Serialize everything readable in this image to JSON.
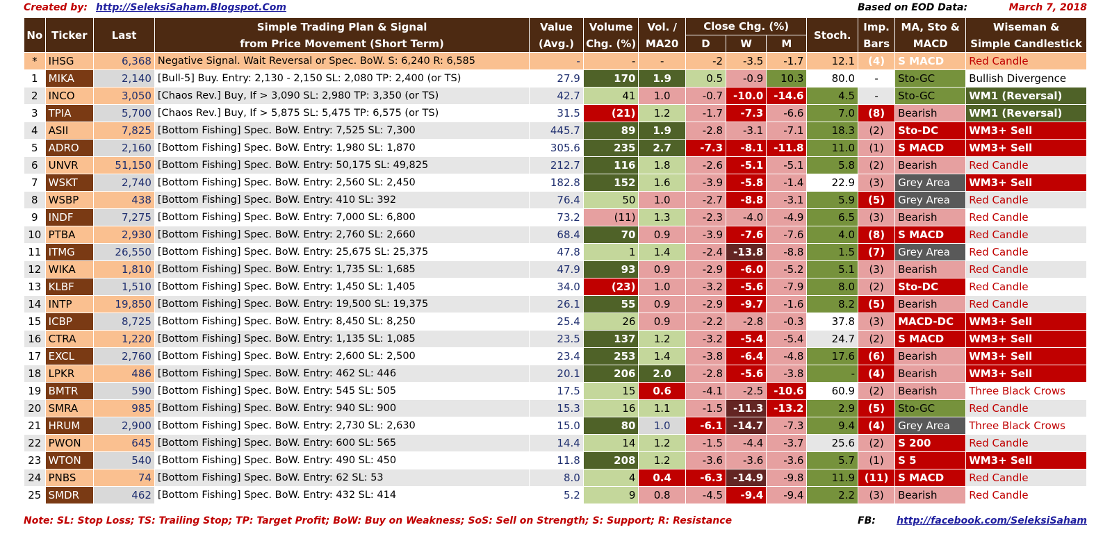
{
  "header": {
    "created_label": "Created by:",
    "created_link": "http://SeleksiSaham.Blogspot.Com",
    "eod_label": "Based on EOD Data:",
    "date": "March 7, 2018"
  },
  "columns": {
    "no": "No",
    "ticker": "Ticker",
    "last": "Last",
    "plan_line1": "Simple Trading Plan & Signal",
    "plan_line2": "from Price Movement (Short Term)",
    "value_line1": "Value",
    "value_line2": "(Avg.)",
    "volume_line1": "Volume",
    "volume_line2": "Chg. (%)",
    "vol_line1": "Vol. /",
    "vol_line2": "MA20",
    "close_chg": "Close Chg. (%)",
    "d": "D",
    "w": "W",
    "m": "M",
    "stoch": "Stoch.",
    "imp_line1": "Imp.",
    "imp_line2": "Bars",
    "ma_line1": "MA, Sto &",
    "ma_line2": "MACD",
    "wiseman_line1": "Wiseman  &",
    "wiseman_line2": "Simple Candlestick"
  },
  "rows": [
    {
      "no": "*",
      "ticker": "IHSG",
      "last": "6,368",
      "plan": "Negative Signal.  Wait Reversal or Spec. BoW.  S:  6,240  R:  6,585",
      "value": "-",
      "vol_chg": "-",
      "vol_ma20": "-",
      "d": "-2",
      "w": "-3.5",
      "m": "-1.7",
      "stoch": "12.1",
      "imp": "(4)",
      "ma": "S MACD",
      "ws": "Red Candle"
    },
    {
      "no": "1",
      "ticker": "MIKA",
      "last": "2,140",
      "plan": "[Bull-5] Buy.  Entry:  2,130 -  2,150  SL: 2,080  TP:  2,400  (or TS)",
      "value": "27.9",
      "vol_chg": "170",
      "vol_ma20": "1.9",
      "d": "0.5",
      "w": "-0.9",
      "m": "10.3",
      "stoch": "80.0",
      "imp": "-",
      "ma": "Sto-GC",
      "ws": "Bullish Divergence"
    },
    {
      "no": "2",
      "ticker": "INCO",
      "last": "3,050",
      "plan": "[Chaos Rev.] Buy, If >  3,090  SL: 2,980  TP: 3,350  (or TS)",
      "value": "42.7",
      "vol_chg": "41",
      "vol_ma20": "1.0",
      "d": "-0.7",
      "w": "-10.0",
      "m": "-14.6",
      "stoch": "4.5",
      "imp": "-",
      "ma": "Sto-GC",
      "ws": "WM1 (Reversal)"
    },
    {
      "no": "3",
      "ticker": "TPIA",
      "last": "5,700",
      "plan": "[Chaos Rev.] Buy, If >  5,875  SL: 5,475  TP: 6,575  (or TS)",
      "value": "31.5",
      "vol_chg": "(21)",
      "vol_ma20": "1.2",
      "d": "-1.7",
      "w": "-7.3",
      "m": "-6.6",
      "stoch": "7.0",
      "imp": "(8)",
      "ma": "Bearish",
      "ws": "WM1 (Reversal)"
    },
    {
      "no": "4",
      "ticker": "ASII",
      "last": "7,825",
      "plan": "[Bottom Fishing]  Spec. BoW. Entry:  7,525  SL:  7,300",
      "value": "445.7",
      "vol_chg": "89",
      "vol_ma20": "1.9",
      "d": "-2.8",
      "w": "-3.1",
      "m": "-7.1",
      "stoch": "18.3",
      "imp": "(2)",
      "ma": "Sto-DC",
      "ws": "WM3+ Sell"
    },
    {
      "no": "5",
      "ticker": "ADRO",
      "last": "2,160",
      "plan": "[Bottom Fishing]  Spec. BoW. Entry:  1,980  SL:  1,870",
      "value": "305.6",
      "vol_chg": "235",
      "vol_ma20": "2.7",
      "d": "-7.3",
      "w": "-8.1",
      "m": "-11.8",
      "stoch": "11.0",
      "imp": "(1)",
      "ma": "S MACD",
      "ws": "WM3+ Sell"
    },
    {
      "no": "6",
      "ticker": "UNVR",
      "last": "51,150",
      "plan": "[Bottom Fishing]  Spec. BoW. Entry: 50,175  SL: 49,825",
      "value": "212.7",
      "vol_chg": "116",
      "vol_ma20": "1.8",
      "d": "-2.6",
      "w": "-5.1",
      "m": "-5.1",
      "stoch": "5.8",
      "imp": "(2)",
      "ma": "Bearish",
      "ws": "Red Candle"
    },
    {
      "no": "7",
      "ticker": "WSKT",
      "last": "2,740",
      "plan": "[Bottom Fishing]  Spec. BoW. Entry:  2,560  SL:  2,450",
      "value": "182.8",
      "vol_chg": "152",
      "vol_ma20": "1.6",
      "d": "-3.9",
      "w": "-5.8",
      "m": "-1.4",
      "stoch": "22.9",
      "imp": "(3)",
      "ma": "Grey Area",
      "ws": "WM3+ Sell"
    },
    {
      "no": "8",
      "ticker": "WSBP",
      "last": "438",
      "plan": "[Bottom Fishing]  Spec. BoW. Entry:    410  SL:    392",
      "value": "76.4",
      "vol_chg": "50",
      "vol_ma20": "1.0",
      "d": "-2.7",
      "w": "-8.8",
      "m": "-3.1",
      "stoch": "5.9",
      "imp": "(5)",
      "ma": "Grey Area",
      "ws": "Red Candle"
    },
    {
      "no": "9",
      "ticker": "INDF",
      "last": "7,275",
      "plan": "[Bottom Fishing]  Spec. BoW. Entry:  7,000  SL:  6,800",
      "value": "73.2",
      "vol_chg": "(11)",
      "vol_ma20": "1.3",
      "d": "-2.3",
      "w": "-4.0",
      "m": "-4.9",
      "stoch": "6.5",
      "imp": "(3)",
      "ma": "Bearish",
      "ws": "Red Candle"
    },
    {
      "no": "10",
      "ticker": "PTBA",
      "last": "2,930",
      "plan": "[Bottom Fishing]  Spec. BoW. Entry:  2,760  SL:  2,660",
      "value": "68.4",
      "vol_chg": "70",
      "vol_ma20": "0.9",
      "d": "-3.9",
      "w": "-7.6",
      "m": "-7.6",
      "stoch": "4.0",
      "imp": "(8)",
      "ma": "S MACD",
      "ws": "Red Candle"
    },
    {
      "no": "11",
      "ticker": "ITMG",
      "last": "26,550",
      "plan": "[Bottom Fishing]  Spec. BoW. Entry: 25,675  SL: 25,375",
      "value": "47.8",
      "vol_chg": "1",
      "vol_ma20": "1.4",
      "d": "-2.4",
      "w": "-13.8",
      "m": "-8.8",
      "stoch": "1.5",
      "imp": "(7)",
      "ma": "Grey Area",
      "ws": "Red Candle"
    },
    {
      "no": "12",
      "ticker": "WIKA",
      "last": "1,810",
      "plan": "[Bottom Fishing]  Spec. BoW. Entry:  1,735  SL:  1,685",
      "value": "47.9",
      "vol_chg": "93",
      "vol_ma20": "0.9",
      "d": "-2.9",
      "w": "-6.0",
      "m": "-5.2",
      "stoch": "5.1",
      "imp": "(3)",
      "ma": "Bearish",
      "ws": "Red Candle"
    },
    {
      "no": "13",
      "ticker": "KLBF",
      "last": "1,510",
      "plan": "[Bottom Fishing]  Spec. BoW. Entry:  1,450  SL:  1,405",
      "value": "34.0",
      "vol_chg": "(23)",
      "vol_ma20": "1.0",
      "d": "-3.2",
      "w": "-5.6",
      "m": "-7.9",
      "stoch": "8.0",
      "imp": "(2)",
      "ma": "Sto-DC",
      "ws": "Red Candle"
    },
    {
      "no": "14",
      "ticker": "INTP",
      "last": "19,850",
      "plan": "[Bottom Fishing]  Spec. BoW. Entry: 19,500  SL: 19,375",
      "value": "26.1",
      "vol_chg": "55",
      "vol_ma20": "0.9",
      "d": "-2.9",
      "w": "-9.7",
      "m": "-1.6",
      "stoch": "8.2",
      "imp": "(5)",
      "ma": "Bearish",
      "ws": "Red Candle"
    },
    {
      "no": "15",
      "ticker": "ICBP",
      "last": "8,725",
      "plan": "[Bottom Fishing]  Spec. BoW. Entry:  8,450  SL:  8,250",
      "value": "25.4",
      "vol_chg": "26",
      "vol_ma20": "0.9",
      "d": "-2.2",
      "w": "-2.8",
      "m": "-0.3",
      "stoch": "37.8",
      "imp": "(3)",
      "ma": "MACD-DC",
      "ws": "WM3+ Sell"
    },
    {
      "no": "16",
      "ticker": "CTRA",
      "last": "1,220",
      "plan": "[Bottom Fishing]  Spec. BoW. Entry:  1,135  SL:  1,085",
      "value": "23.5",
      "vol_chg": "137",
      "vol_ma20": "1.2",
      "d": "-3.2",
      "w": "-5.4",
      "m": "-5.4",
      "stoch": "24.7",
      "imp": "(2)",
      "ma": "S MACD",
      "ws": "WM3+ Sell"
    },
    {
      "no": "17",
      "ticker": "EXCL",
      "last": "2,760",
      "plan": "[Bottom Fishing]  Spec. BoW. Entry:  2,600  SL:  2,500",
      "value": "23.4",
      "vol_chg": "253",
      "vol_ma20": "1.4",
      "d": "-3.8",
      "w": "-6.4",
      "m": "-4.8",
      "stoch": "17.6",
      "imp": "(6)",
      "ma": "Bearish",
      "ws": "WM3+ Sell"
    },
    {
      "no": "18",
      "ticker": "LPKR",
      "last": "486",
      "plan": "[Bottom Fishing]  Spec. BoW. Entry:    462  SL:    446",
      "value": "20.1",
      "vol_chg": "206",
      "vol_ma20": "2.0",
      "d": "-2.8",
      "w": "-5.6",
      "m": "-3.8",
      "stoch": "-",
      "imp": "(4)",
      "ma": "Bearish",
      "ws": "WM3+ Sell"
    },
    {
      "no": "19",
      "ticker": "BMTR",
      "last": "590",
      "plan": "[Bottom Fishing]  Spec. BoW. Entry:    545  SL:    505",
      "value": "17.5",
      "vol_chg": "15",
      "vol_ma20": "0.6",
      "d": "-4.1",
      "w": "-2.5",
      "m": "-10.6",
      "stoch": "60.9",
      "imp": "(2)",
      "ma": "Bearish",
      "ws": "Three Black Crows"
    },
    {
      "no": "20",
      "ticker": "SMRA",
      "last": "985",
      "plan": "[Bottom Fishing]  Spec. BoW. Entry:    940  SL:    900",
      "value": "15.3",
      "vol_chg": "16",
      "vol_ma20": "1.1",
      "d": "-1.5",
      "w": "-11.3",
      "m": "-13.2",
      "stoch": "2.9",
      "imp": "(5)",
      "ma": "Sto-GC",
      "ws": "Red Candle"
    },
    {
      "no": "21",
      "ticker": "HRUM",
      "last": "2,900",
      "plan": "[Bottom Fishing]  Spec. BoW. Entry:  2,730  SL:  2,630",
      "value": "15.0",
      "vol_chg": "80",
      "vol_ma20": "1.0",
      "d": "-6.1",
      "w": "-14.7",
      "m": "-7.3",
      "stoch": "9.4",
      "imp": "(4)",
      "ma": "Grey Area",
      "ws": "Three Black Crows"
    },
    {
      "no": "22",
      "ticker": "PWON",
      "last": "645",
      "plan": "[Bottom Fishing]  Spec. BoW. Entry:    600  SL:    565",
      "value": "14.4",
      "vol_chg": "14",
      "vol_ma20": "1.2",
      "d": "-1.5",
      "w": "-4.4",
      "m": "-3.7",
      "stoch": "25.6",
      "imp": "(2)",
      "ma": "S 200",
      "ws": "Red Candle"
    },
    {
      "no": "23",
      "ticker": "WTON",
      "last": "540",
      "plan": "[Bottom Fishing]  Spec. BoW. Entry:    490  SL:    450",
      "value": "11.8",
      "vol_chg": "208",
      "vol_ma20": "1.2",
      "d": "-3.6",
      "w": "-3.6",
      "m": "-3.6",
      "stoch": "5.7",
      "imp": "(1)",
      "ma": "S 5",
      "ws": "WM3+ Sell"
    },
    {
      "no": "24",
      "ticker": "PNBS",
      "last": "74",
      "plan": "[Bottom Fishing]  Spec. BoW. Entry:     62  SL:     53",
      "value": "8.0",
      "vol_chg": "4",
      "vol_ma20": "0.4",
      "d": "-6.3",
      "w": "-14.9",
      "m": "-9.8",
      "stoch": "11.9",
      "imp": "(11)",
      "ma": "S MACD",
      "ws": "Red Candle"
    },
    {
      "no": "25",
      "ticker": "SMDR",
      "last": "462",
      "plan": "[Bottom Fishing]  Spec. BoW. Entry:    432  SL:    414",
      "value": "5.2",
      "vol_chg": "9",
      "vol_ma20": "0.8",
      "d": "-4.5",
      "w": "-9.4",
      "m": "-9.4",
      "stoch": "2.2",
      "imp": "(3)",
      "ma": "Bearish",
      "ws": "Red Candle"
    }
  ],
  "footer": {
    "note": "Note:  SL: Stop Loss; TS: Trailing Stop; TP: Target Profit; BoW: Buy on Weakness; SoS: Sell on Strength; S: Support; R: Resistance",
    "fb_label": "FB:",
    "fb_link": "http://facebook.com/SeleksiSaham"
  }
}
